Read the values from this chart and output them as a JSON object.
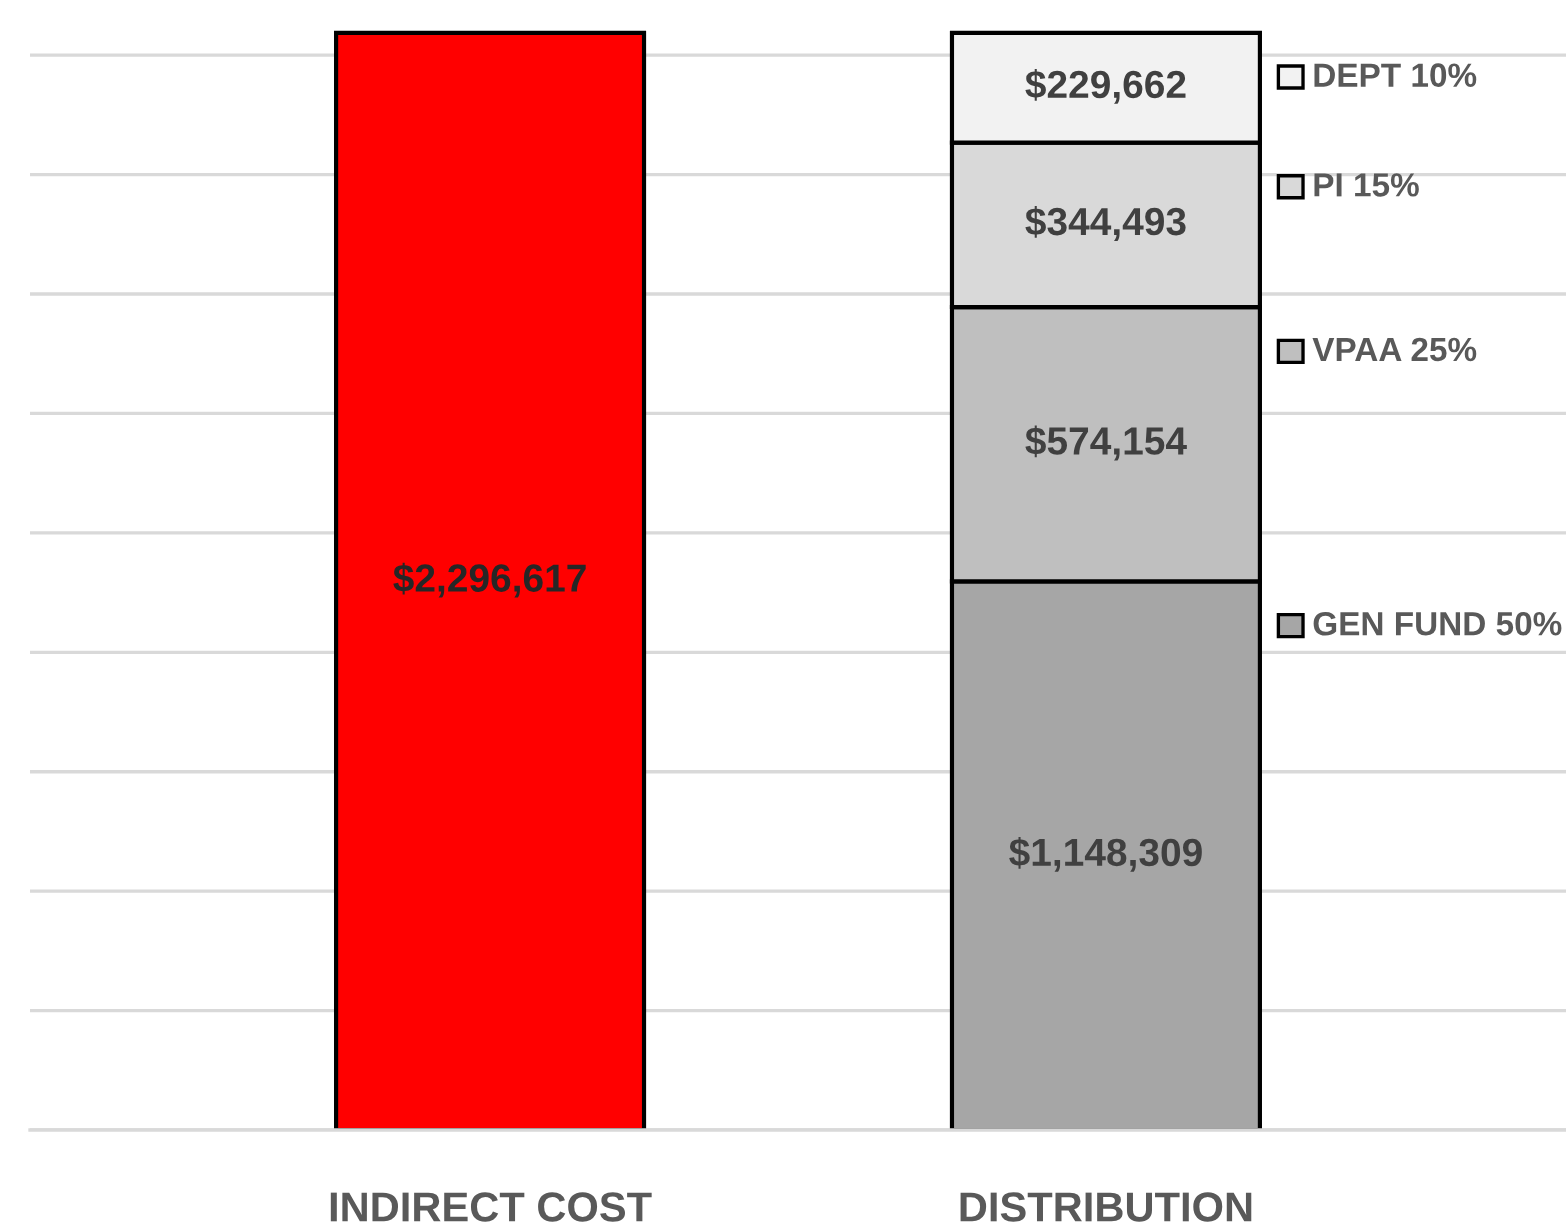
{
  "chart_data": {
    "type": "bar",
    "stacked": true,
    "categories": [
      "INDIRECT COST",
      "DISTRIBUTION"
    ],
    "series": [
      {
        "color": "#ff0000",
        "values": [
          2296617,
          null
        ],
        "value_labels": [
          "$2,296,617",
          null
        ]
      },
      {
        "name": "GEN FUND 50%",
        "color": "#a6a6a6",
        "values": [
          null,
          1148309
        ],
        "value_labels": [
          null,
          "$1,148,309"
        ]
      },
      {
        "name": "VPAA 25%",
        "color": "#bfbfbf",
        "values": [
          null,
          574154
        ],
        "value_labels": [
          null,
          "$574,154"
        ]
      },
      {
        "name": "PI 15%",
        "color": "#d9d9d9",
        "values": [
          null,
          344493
        ],
        "value_labels": [
          null,
          "$344,493"
        ]
      },
      {
        "name": "DEPT 10%",
        "color": "#f2f2f2",
        "values": [
          null,
          229662
        ],
        "value_labels": [
          null,
          "$229,662"
        ]
      }
    ],
    "tick_labels": "x",
    "grid": "y",
    "legend": "right"
  }
}
